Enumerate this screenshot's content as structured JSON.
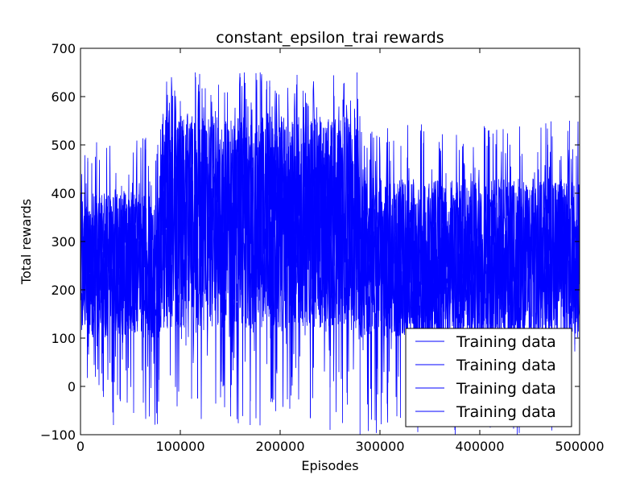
{
  "chart_data": {
    "type": "line",
    "title": "constant_epsilon_trai rewards",
    "xlabel": "Episodes",
    "ylabel": "Total rewards",
    "xlim": [
      0,
      500000
    ],
    "ylim": [
      -100,
      700
    ],
    "x_ticks": [
      0,
      100000,
      200000,
      300000,
      400000,
      500000
    ],
    "x_tick_labels": [
      "0",
      "100000",
      "200000",
      "300000",
      "400000",
      "500000"
    ],
    "y_ticks": [
      -100,
      0,
      100,
      200,
      300,
      400,
      500,
      600,
      700
    ],
    "y_tick_labels": [
      "−100",
      "0",
      "100",
      "200",
      "300",
      "400",
      "500",
      "600",
      "700"
    ],
    "grid": false,
    "legend_position": "lower-right",
    "series_color": "#0000ff",
    "series": [
      {
        "name": "Training data"
      },
      {
        "name": "Training data"
      },
      {
        "name": "Training data"
      },
      {
        "name": "Training data"
      }
    ],
    "segments": [
      {
        "x_start": 0,
        "x_end": 80000,
        "typical_low": 100,
        "typical_high": 400,
        "min": -80,
        "max": 540
      },
      {
        "x_start": 80000,
        "x_end": 280000,
        "typical_low": 120,
        "typical_high": 560,
        "min": -90,
        "max": 650
      },
      {
        "x_start": 280000,
        "x_end": 500000,
        "typical_low": 100,
        "typical_high": 430,
        "min": -100,
        "max": 550
      }
    ],
    "peaks": [
      {
        "x": 115000,
        "y": 650
      },
      {
        "x": 160000,
        "y": 640
      },
      {
        "x": 180000,
        "y": 650
      },
      {
        "x": 277000,
        "y": 650
      },
      {
        "x": 490000,
        "y": 550
      }
    ],
    "troughs": [
      {
        "x": 33000,
        "y": -80
      },
      {
        "x": 170000,
        "y": -80
      },
      {
        "x": 250000,
        "y": -90
      },
      {
        "x": 280000,
        "y": -100
      },
      {
        "x": 375000,
        "y": -90
      }
    ]
  }
}
